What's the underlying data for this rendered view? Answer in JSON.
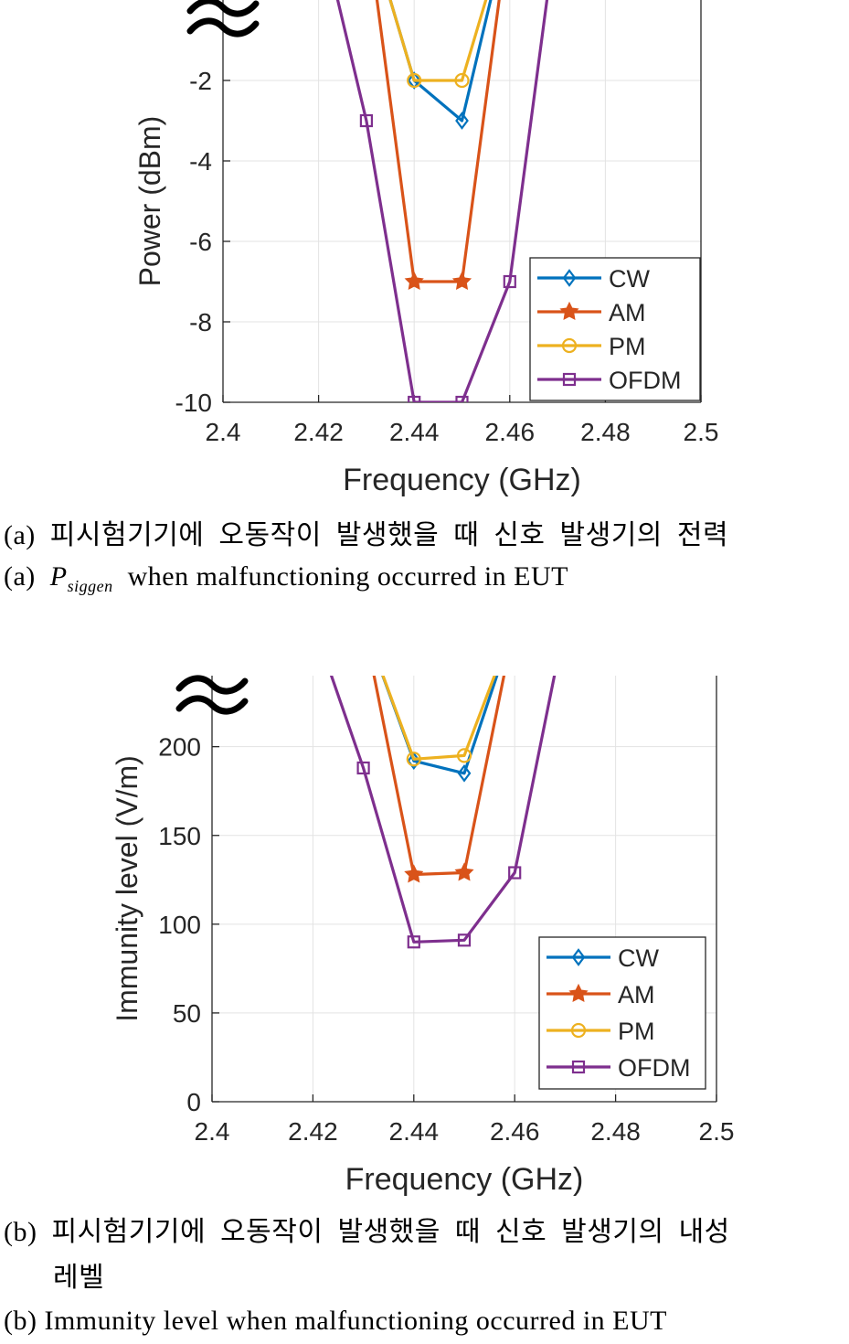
{
  "chart_data": [
    {
      "type": "line",
      "xlabel": "Frequency (GHz)",
      "ylabel": "Power (dBm)",
      "xlim": [
        2.4,
        2.5
      ],
      "ylim": [
        -10,
        0
      ],
      "xticks": [
        "2.4",
        "2.42",
        "2.44",
        "2.46",
        "2.48",
        "2.5"
      ],
      "yticks": [
        "-2",
        "-4",
        "-6",
        "-8",
        "-10"
      ],
      "grid": true,
      "legend": "lower-right",
      "axis_break_at_top": true,
      "series": [
        {
          "name": "CW",
          "color": "#0072BD",
          "marker": "diamond",
          "x": [
            2.43,
            2.44,
            2.45,
            2.46
          ],
          "y": [
            2,
            -2,
            -3,
            2
          ]
        },
        {
          "name": "AM",
          "color": "#D95319",
          "marker": "star",
          "x": [
            2.43,
            2.44,
            2.45,
            2.46
          ],
          "y": [
            2,
            -7,
            -7,
            2
          ]
        },
        {
          "name": "PM",
          "color": "#EDB120",
          "marker": "circle",
          "x": [
            2.43,
            2.44,
            2.45,
            2.46
          ],
          "y": [
            2,
            -2,
            -2,
            2
          ]
        },
        {
          "name": "OFDM",
          "color": "#7E2F8E",
          "marker": "square",
          "x": [
            2.42,
            2.43,
            2.44,
            2.45,
            2.46,
            2.47
          ],
          "y": [
            2,
            -3,
            -10,
            -10,
            -7,
            2
          ]
        }
      ]
    },
    {
      "type": "line",
      "xlabel": "Frequency (GHz)",
      "ylabel": "Immunity level (V/m)",
      "xlim": [
        2.4,
        2.5
      ],
      "ylim": [
        0,
        240
      ],
      "xticks": [
        "2.4",
        "2.42",
        "2.44",
        "2.46",
        "2.48",
        "2.5"
      ],
      "yticks": [
        "0",
        "50",
        "100",
        "150",
        "200"
      ],
      "grid": true,
      "legend": "lower-right",
      "axis_break_at_top": true,
      "series": [
        {
          "name": "CW",
          "color": "#0072BD",
          "marker": "diamond",
          "x": [
            2.43,
            2.44,
            2.45,
            2.46
          ],
          "y": [
            270,
            192,
            185,
            270
          ]
        },
        {
          "name": "AM",
          "color": "#D95319",
          "marker": "star",
          "x": [
            2.43,
            2.44,
            2.45,
            2.46
          ],
          "y": [
            270,
            128,
            129,
            270
          ]
        },
        {
          "name": "PM",
          "color": "#EDB120",
          "marker": "circle",
          "x": [
            2.43,
            2.44,
            2.45,
            2.46
          ],
          "y": [
            270,
            193,
            195,
            270
          ]
        },
        {
          "name": "OFDM",
          "color": "#7E2F8E",
          "marker": "square",
          "x": [
            2.42,
            2.43,
            2.44,
            2.45,
            2.46,
            2.47
          ],
          "y": [
            270,
            188,
            90,
            91,
            129,
            270
          ]
        }
      ]
    }
  ],
  "captions": {
    "a_ko": "(a) 피시험기기에 오동작이 발생했을 때 신호 발생기의 전력",
    "a_en_prefix": "(a)",
    "a_en_symbol": "P",
    "a_en_subscript": "siggen",
    "a_en_rest": "when malfunctioning occurred in EUT",
    "b_ko_line1": "(b) 피시험기기에 오동작이 발생했을 때 신호 발생기의 내성",
    "b_ko_line2": "레벨",
    "b_en": "(b) Immunity level when malfunctioning occurred in EUT"
  }
}
